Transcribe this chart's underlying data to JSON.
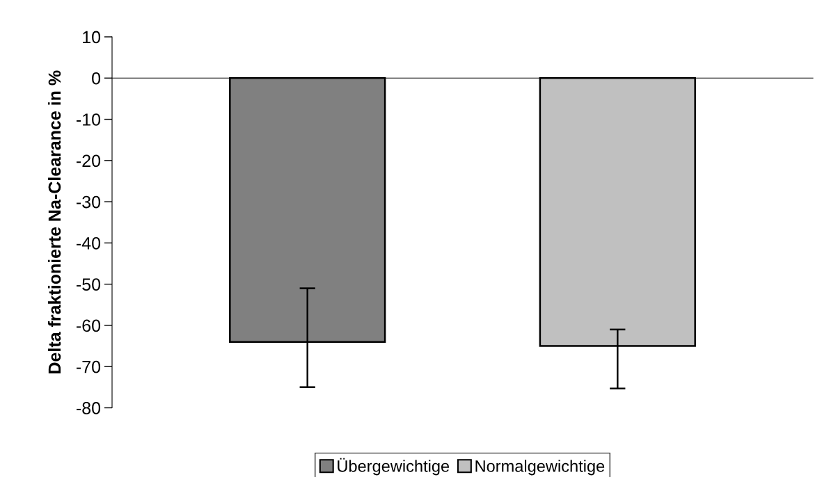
{
  "chart_data": {
    "type": "bar",
    "ylabel": "Delta fraktionierte Na-Clearance in %",
    "categories": [
      null,
      null
    ],
    "series": [
      {
        "name": "Übergewichtige",
        "color": "#808080",
        "values": [
          -64,
          null
        ],
        "errors": [
          [
            -75,
            -51
          ],
          null
        ]
      },
      {
        "name": "Normalgewichtige",
        "color": "#c0c0c0",
        "values": [
          null,
          -65
        ],
        "errors": [
          null,
          [
            -75.3,
            -61
          ]
        ]
      }
    ],
    "ylim": [
      -80,
      10
    ],
    "yticks": [
      10,
      0,
      -10,
      -20,
      -30,
      -40,
      -50,
      -60,
      -70,
      -80
    ],
    "legend": "bottom"
  }
}
